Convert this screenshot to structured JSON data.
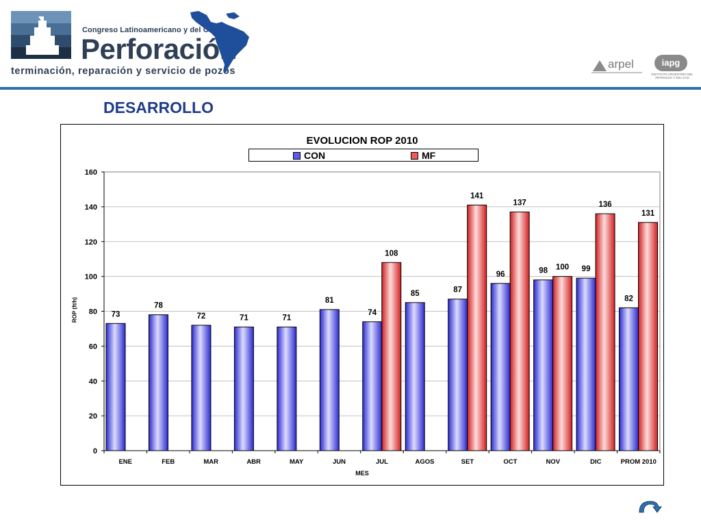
{
  "header": {
    "congress_line": "Congreso Latinoamericano y del Caribe de",
    "brand_title": "Perforación",
    "tagline": "terminación, reparación y servicio de pozos",
    "partner_logo_arpel": "arpel",
    "partner_logo_iapg": "iapg",
    "partner_logo_iapg_sub": "INSTITUTO ARGENTINO DEL PETROLEO Y DEL GAS",
    "icons": [
      "congress-logo-icon",
      "latin-america-map-icon",
      "arpel-logo-icon",
      "iapg-logo-icon"
    ],
    "rule_color": "#2e6fb0"
  },
  "page": {
    "title": "DESARROLLO",
    "title_color": "#1f3c88"
  },
  "chart_data": {
    "type": "bar",
    "title": "EVOLUCION ROP 2010",
    "xlabel": "MES",
    "ylabel": "ROP (ft/h)",
    "ylim": [
      0,
      160
    ],
    "yticks": [
      0,
      20,
      40,
      60,
      80,
      100,
      120,
      140,
      160
    ],
    "grid": true,
    "legend_position": "top",
    "categories": [
      "ENE",
      "FEB",
      "MAR",
      "ABR",
      "MAY",
      "JUN",
      "JUL",
      "AGOS",
      "SET",
      "OCT",
      "NOV",
      "DIC",
      "PROM 2010"
    ],
    "series": [
      {
        "name": "CON",
        "color": "#5a5af0",
        "values": [
          73,
          78,
          72,
          71,
          71,
          81,
          74,
          85,
          87,
          96,
          98,
          99,
          82
        ]
      },
      {
        "name": "MF",
        "color": "#f05a5a",
        "values": [
          null,
          null,
          null,
          null,
          null,
          null,
          108,
          null,
          141,
          137,
          100,
          136,
          131
        ]
      }
    ]
  },
  "nav": {
    "next_icon": "curved-arrow-icon"
  }
}
